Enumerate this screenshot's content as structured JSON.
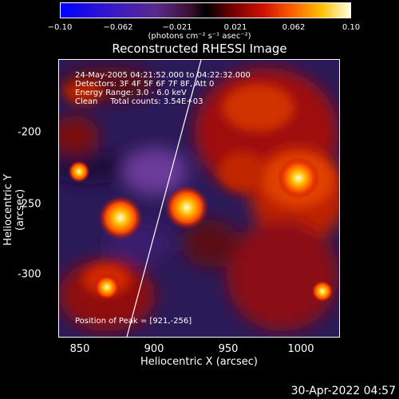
{
  "colorbar": {
    "ticks": [
      "−0.10",
      "−0.062",
      "−0.021",
      "0.021",
      "0.062",
      "0.10"
    ],
    "units": "(photons cm⁻² s⁻¹ asec⁻²)"
  },
  "image": {
    "title": "Reconstructed RHESSI Image",
    "info": {
      "time_range": "24-May-2005 04:21:52.000 to 04:22:32.000",
      "detectors": "Detectors: 3F 4F 5F 6F 7F 8F, Att 0",
      "energy": "Energy Range: 3.0 - 6.0 keV",
      "method": "Clean     Total counts: 3.54E+03"
    },
    "peak_label": "Position of Peak = [921,-256]",
    "peak": {
      "x": 921,
      "y": -256
    },
    "x_axis": {
      "label": "Heliocentric X (arcsec)",
      "ticks": [
        "850",
        "900",
        "950",
        "1000"
      ],
      "range": [
        835,
        1025
      ]
    },
    "y_axis": {
      "label": "Heliocentric Y (arcsec)",
      "ticks": [
        "-200",
        "-250",
        "-300"
      ],
      "range": [
        -345,
        -165
      ]
    }
  },
  "timestamp": "30-Apr-2022 04:57"
}
